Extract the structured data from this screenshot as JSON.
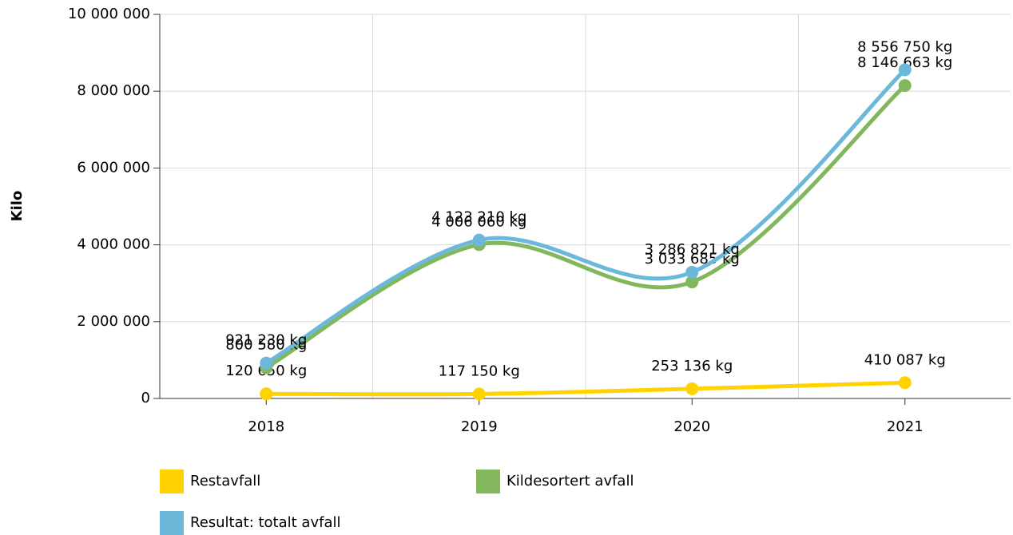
{
  "chart_data": {
    "type": "line",
    "y_label": "Kilo",
    "categories": [
      "2018",
      "2019",
      "2020",
      "2021"
    ],
    "series": [
      {
        "name": "Restavfall",
        "color": "#ffd200",
        "values": [
          120650,
          117150,
          253136,
          410087
        ],
        "value_labels": [
          "120 650 kg",
          "117 150 kg",
          "253 136 kg",
          "410 087 kg"
        ]
      },
      {
        "name": "Kildesortert avfall",
        "color": "#82b75e",
        "values": [
          800580,
          4006060,
          3033685,
          8146663
        ],
        "value_labels": [
          "800 580 kg",
          "4 006 060 kg",
          "3 033 685 kg",
          "8 146 663 kg"
        ]
      },
      {
        "name": "Resultat: totalt avfall",
        "color": "#6bb8db",
        "values": [
          921230,
          4123210,
          3286821,
          8556750
        ],
        "value_labels": [
          "921 230 kg",
          "4 123 210 kg",
          "3 286 821 kg",
          "8 556 750 kg"
        ]
      }
    ],
    "ylim": [
      0,
      10000000
    ],
    "yticks": [
      0,
      {
        "value": 2000000,
        "label": "2 000 000"
      },
      {
        "value": 4000000,
        "label": "4 000 000"
      },
      {
        "value": 6000000,
        "label": "6 000 000"
      },
      {
        "value": 8000000,
        "label": "8 000 000"
      },
      {
        "value": 10000000,
        "label": "10 000 000"
      }
    ],
    "grid": true
  }
}
